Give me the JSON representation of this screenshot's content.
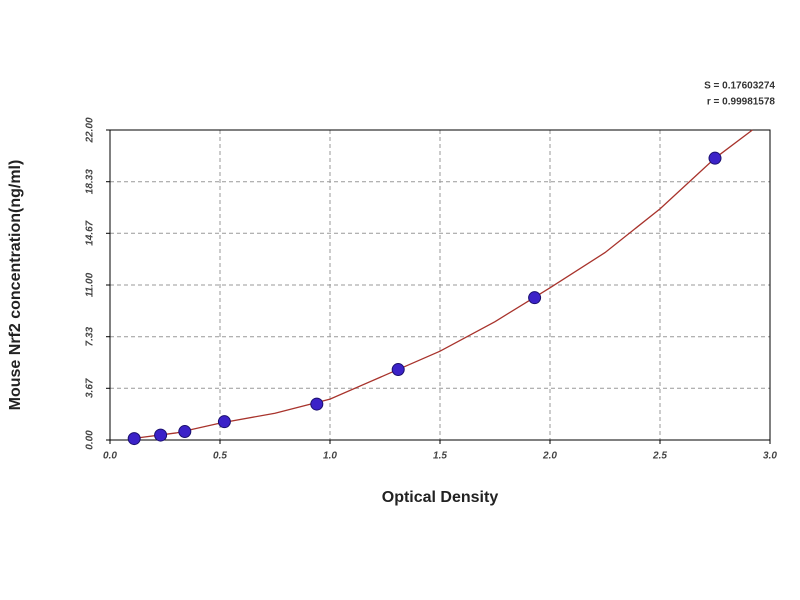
{
  "chart_data": {
    "type": "scatter",
    "x_label": "Optical Density",
    "y_label": "Mouse Nrf2 concentration(ng/ml)",
    "annotations": [
      "S = 0.17603274",
      "r = 0.99981578"
    ],
    "xlim": [
      0,
      3
    ],
    "ylim": [
      0,
      22
    ],
    "xticks": [
      {
        "value": 0,
        "label": "0.0"
      },
      0.5,
      {
        "value": 1,
        "label": "1.0"
      },
      1.5,
      {
        "value": 2,
        "label": "2.0"
      },
      2.5,
      {
        "value": 3,
        "label": "3.0"
      }
    ],
    "yticks": [
      {
        "value": 0,
        "label": "0.00"
      },
      3.67,
      7.33,
      {
        "value": 11,
        "label": "11.00"
      },
      14.67,
      18.33,
      {
        "value": 22,
        "label": "22.00"
      }
    ],
    "grid": true,
    "series": [
      {
        "type": "scatter",
        "color": "#3b22c8",
        "x": [
          0.11,
          0.23,
          0.34,
          0.52,
          0.94,
          1.31,
          1.93,
          2.75
        ],
        "values": [
          0.1,
          0.35,
          0.6,
          1.3,
          2.55,
          5.0,
          10.1,
          20.0
        ]
      },
      {
        "type": "line",
        "color": "#a8332c",
        "x": [
          0.1,
          0.3,
          0.5,
          0.75,
          1.0,
          1.25,
          1.5,
          1.75,
          2.0,
          2.25,
          2.5,
          2.75,
          2.92
        ],
        "values": [
          0.1,
          0.5,
          1.2,
          1.9,
          2.9,
          4.6,
          6.3,
          8.4,
          10.8,
          13.3,
          16.4,
          20.0,
          22.0
        ]
      }
    ]
  }
}
